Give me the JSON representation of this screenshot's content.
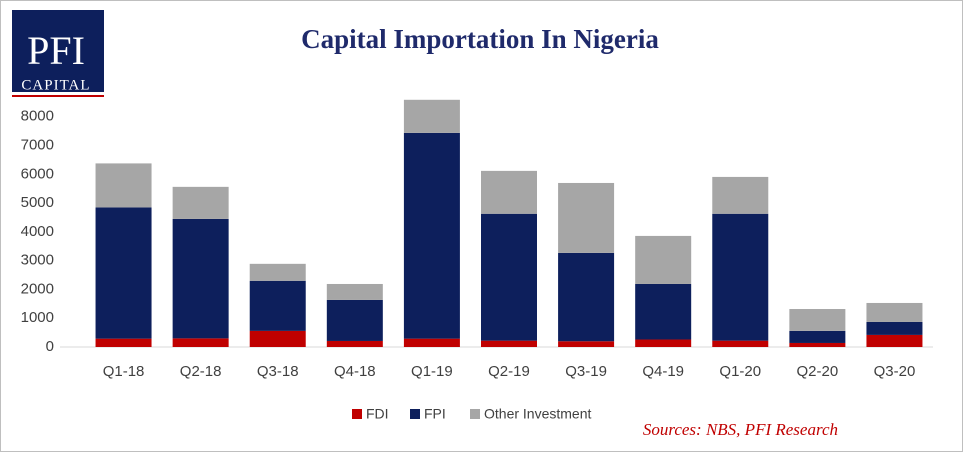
{
  "logo": {
    "main": "PFI",
    "sub": "CAPITAL"
  },
  "chart_data": {
    "type": "stacked_bar",
    "title": "Capital Importation In Nigeria",
    "categories": [
      "Q1-18",
      "Q2-18",
      "Q3-18",
      "Q4-18",
      "Q1-19",
      "Q2-19",
      "Q3-19",
      "Q4-19",
      "Q1-20",
      "Q2-20",
      "Q3-20"
    ],
    "series": [
      {
        "name": "FDI",
        "color": "#c00000",
        "values": [
          290,
          300,
          560,
          210,
          290,
          220,
          200,
          260,
          220,
          140,
          420
        ]
      },
      {
        "name": "FPI",
        "color": "#0d1f5c",
        "values": [
          4560,
          4150,
          1740,
          1425,
          7150,
          4410,
          3070,
          1930,
          4410,
          420,
          450
        ]
      },
      {
        "name": "Other Investment",
        "color": "#a6a6a6",
        "values": [
          1530,
          1115,
          590,
          555,
          1150,
          1490,
          2430,
          1670,
          1280,
          760,
          660
        ]
      }
    ],
    "ylim": [
      0,
      9000
    ],
    "yticks": [
      0,
      1000,
      2000,
      3000,
      4000,
      5000,
      6000,
      7000,
      8000
    ],
    "legend": "bottom",
    "source": "Sources: NBS, PFI Research"
  }
}
